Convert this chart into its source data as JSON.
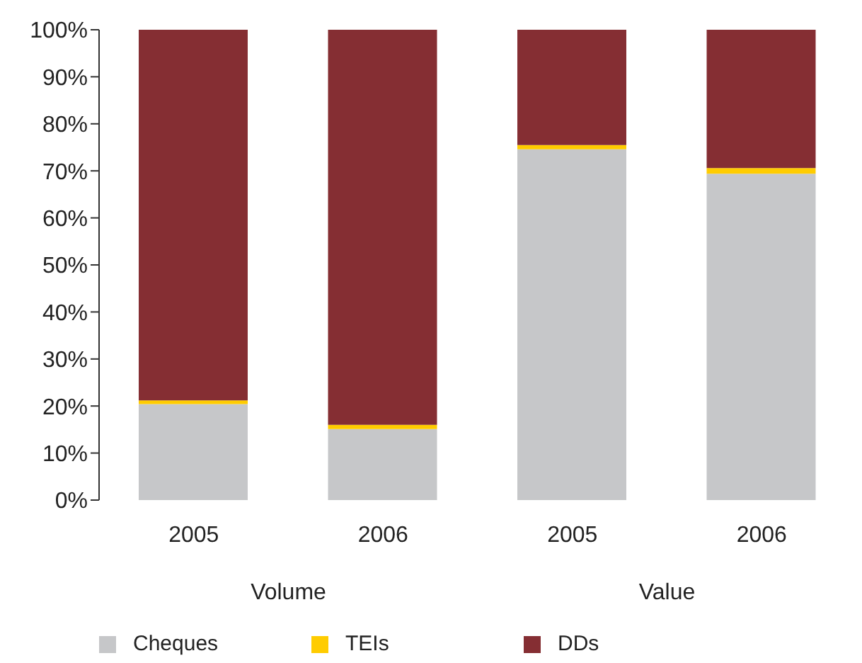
{
  "chart_data": {
    "type": "bar",
    "stacked": true,
    "categories": [
      "2005",
      "2006",
      "2005",
      "2006"
    ],
    "series": [
      {
        "name": "Cheques",
        "color": "#c6c7c9",
        "values": [
          20.4,
          15.1,
          74.6,
          69.4
        ]
      },
      {
        "name": "TEIs",
        "color": "#ffcc00",
        "values": [
          0.8,
          0.9,
          0.9,
          1.2
        ]
      },
      {
        "name": "DDs",
        "color": "#852e33",
        "values": [
          78.8,
          84.0,
          24.5,
          29.4
        ]
      }
    ],
    "ylim": [
      0,
      100
    ],
    "yticks": [
      {
        "value": 0,
        "label": "0%"
      },
      {
        "value": 10,
        "label": "10%"
      },
      {
        "value": 20,
        "label": "20%"
      },
      {
        "value": 30,
        "label": "30%"
      },
      {
        "value": 40,
        "label": "40%"
      },
      {
        "value": 50,
        "label": "50%"
      },
      {
        "value": 60,
        "label": "60%"
      },
      {
        "value": 70,
        "label": "70%"
      },
      {
        "value": 80,
        "label": "80%"
      },
      {
        "value": 90,
        "label": "90%"
      },
      {
        "value": 100,
        "label": "100%"
      }
    ],
    "annotations": [
      "Volume",
      "Value"
    ],
    "legend": "bottom"
  }
}
